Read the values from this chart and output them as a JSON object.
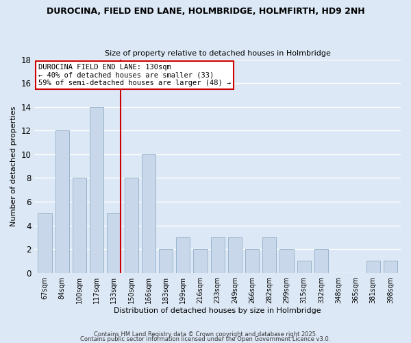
{
  "title": "DUROCINA, FIELD END LANE, HOLMBRIDGE, HOLMFIRTH, HD9 2NH",
  "subtitle": "Size of property relative to detached houses in Holmbridge",
  "xlabel": "Distribution of detached houses by size in Holmbridge",
  "ylabel": "Number of detached properties",
  "bins": [
    "67sqm",
    "84sqm",
    "100sqm",
    "117sqm",
    "133sqm",
    "150sqm",
    "166sqm",
    "183sqm",
    "199sqm",
    "216sqm",
    "233sqm",
    "249sqm",
    "266sqm",
    "282sqm",
    "299sqm",
    "315sqm",
    "332sqm",
    "348sqm",
    "365sqm",
    "381sqm",
    "398sqm"
  ],
  "values": [
    5,
    12,
    8,
    14,
    5,
    8,
    10,
    2,
    3,
    2,
    3,
    3,
    2,
    3,
    2,
    1,
    2,
    0,
    0,
    1,
    1
  ],
  "bar_color": "#c8d8ea",
  "bar_edge_color": "#9ab4cc",
  "vline_x_index": 4,
  "vline_color": "#cc0000",
  "ylim": [
    0,
    18
  ],
  "yticks": [
    0,
    2,
    4,
    6,
    8,
    10,
    12,
    14,
    16,
    18
  ],
  "annotation_title": "DUROCINA FIELD END LANE: 130sqm",
  "annotation_line1": "← 40% of detached houses are smaller (33)",
  "annotation_line2": "59% of semi-detached houses are larger (48) →",
  "bg_color": "#dce8f5",
  "grid_color": "#ffffff",
  "footer1": "Contains HM Land Registry data © Crown copyright and database right 2025.",
  "footer2": "Contains public sector information licensed under the Open Government Licence v3.0."
}
